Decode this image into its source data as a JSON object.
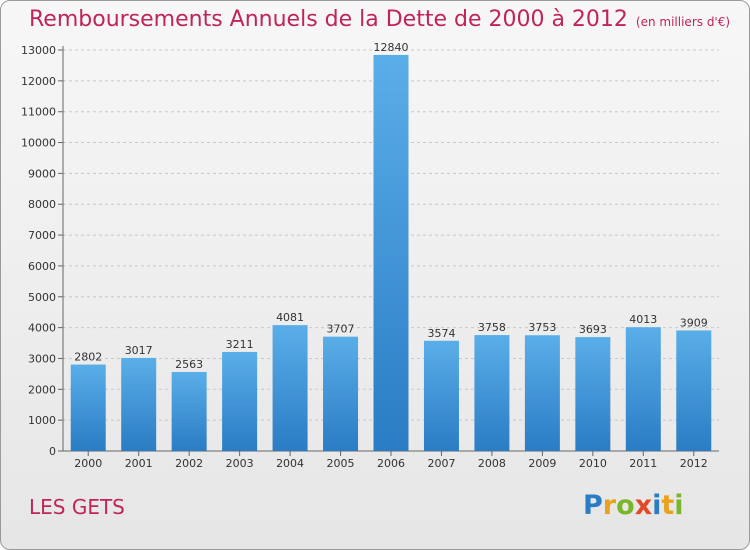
{
  "chart_data": {
    "type": "bar",
    "title": "Remboursements Annuels de la Dette de 2000 à 2012",
    "subtitle": "(en milliers d'€)",
    "categories": [
      "2000",
      "2001",
      "2002",
      "2003",
      "2004",
      "2005",
      "2006",
      "2007",
      "2008",
      "2009",
      "2010",
      "2011",
      "2012"
    ],
    "values": [
      2802,
      3017,
      2563,
      3211,
      4081,
      3707,
      12840,
      3574,
      3758,
      3753,
      3693,
      4013,
      3909
    ],
    "ylim": [
      0,
      13000
    ],
    "yticks": [
      0,
      1000,
      2000,
      3000,
      4000,
      5000,
      6000,
      7000,
      8000,
      9000,
      10000,
      11000,
      12000,
      13000
    ],
    "grid": true,
    "bar_color_top": "#5aaee8",
    "bar_color_bottom": "#2a7cc4",
    "title_color": "#c0245a"
  },
  "footer": {
    "place": "LES GETS"
  },
  "logo": {
    "letters": [
      "P",
      "r",
      "o",
      "x",
      "i",
      "t",
      "i"
    ],
    "colors": [
      "#2a7cc4",
      "#e8a21c",
      "#7bb52a",
      "#e04a2a",
      "#2a7cc4",
      "#e8a21c",
      "#7bb52a"
    ]
  }
}
